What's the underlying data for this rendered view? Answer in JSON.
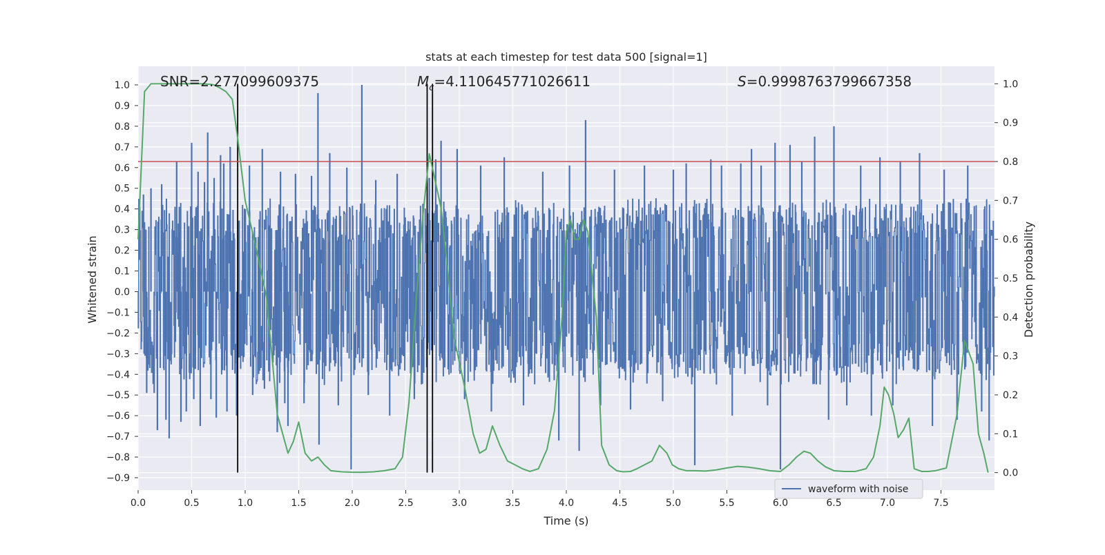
{
  "chart_data": {
    "type": "line",
    "title": "stats at each timestep for test data 500 [signal=1]",
    "xlabel": "Time (s)",
    "ylabel_left": "Whitened strain",
    "ylabel_right": "Detection probability",
    "xlim": [
      0.0,
      8.0
    ],
    "ylim_left": [
      -0.96,
      1.09
    ],
    "ylim_right": [
      -0.045,
      1.045
    ],
    "x_ticks": [
      "0.0",
      "0.5",
      "1.0",
      "1.5",
      "2.0",
      "2.5",
      "3.0",
      "3.5",
      "4.0",
      "4.5",
      "5.0",
      "5.5",
      "6.0",
      "6.5",
      "7.0",
      "7.5"
    ],
    "y_left_ticks": [
      "-0.9",
      "-0.8",
      "-0.7",
      "-0.6",
      "-0.5",
      "-0.4",
      "-0.3",
      "-0.2",
      "-0.1",
      "0.0",
      "0.1",
      "0.2",
      "0.3",
      "0.4",
      "0.5",
      "0.6",
      "0.7",
      "0.8",
      "0.9",
      "1.0"
    ],
    "y_right_ticks": [
      "0.0",
      "0.1",
      "0.2",
      "0.3",
      "0.4",
      "0.5",
      "0.6",
      "0.7",
      "0.8",
      "0.9",
      "1.0"
    ],
    "annotations": {
      "snr": "SNR=2.277099609375",
      "mc_symbol": "M",
      "mc_subscript": "c",
      "mc_value": "=4.110645771026611",
      "s_symbol": "S",
      "s_value": "=0.9998763799667358"
    },
    "threshold_line": {
      "axis": "right",
      "value": 0.8,
      "color": "#c44e52"
    },
    "vertical_markers": {
      "times": [
        0.93,
        2.7,
        2.75
      ],
      "color": "#000000"
    },
    "legend": {
      "position": "lower-right",
      "entries": [
        "waveform with noise"
      ]
    },
    "series": [
      {
        "name": "waveform with noise",
        "axis": "left",
        "color": "#4c72b0",
        "envelope": {
          "noise_core": 0.43,
          "noise_core_neg": -0.4
        },
        "spikes": [
          {
            "t": 0.05,
            "v": 0.47
          },
          {
            "t": 0.08,
            "v": -0.49
          },
          {
            "t": 0.12,
            "v": 0.5
          },
          {
            "t": 0.15,
            "v": -0.49
          },
          {
            "t": 0.18,
            "v": -0.67
          },
          {
            "t": 0.22,
            "v": 0.52
          },
          {
            "t": 0.26,
            "v": -0.62
          },
          {
            "t": 0.29,
            "v": -0.71
          },
          {
            "t": 0.36,
            "v": 0.63
          },
          {
            "t": 0.4,
            "v": -0.63
          },
          {
            "t": 0.45,
            "v": -0.58
          },
          {
            "t": 0.5,
            "v": 0.72
          },
          {
            "t": 0.52,
            "v": -0.52
          },
          {
            "t": 0.56,
            "v": 0.58
          },
          {
            "t": 0.58,
            "v": -0.65
          },
          {
            "t": 0.62,
            "v": 0.53
          },
          {
            "t": 0.65,
            "v": 0.77
          },
          {
            "t": 0.68,
            "v": -0.52
          },
          {
            "t": 0.71,
            "v": 0.55
          },
          {
            "t": 0.73,
            "v": -0.61
          },
          {
            "t": 0.77,
            "v": 0.66
          },
          {
            "t": 0.8,
            "v": 0.62
          },
          {
            "t": 0.83,
            "v": -0.58
          },
          {
            "t": 0.86,
            "v": 0.7
          },
          {
            "t": 0.92,
            "v": -0.6
          },
          {
            "t": 1.04,
            "v": 0.61
          },
          {
            "t": 1.07,
            "v": -0.5
          },
          {
            "t": 1.16,
            "v": 0.69
          },
          {
            "t": 1.18,
            "v": -0.47
          },
          {
            "t": 1.3,
            "v": -0.68
          },
          {
            "t": 1.33,
            "v": 0.58
          },
          {
            "t": 1.37,
            "v": -0.54
          },
          {
            "t": 1.4,
            "v": -0.65
          },
          {
            "t": 1.47,
            "v": 0.57
          },
          {
            "t": 1.55,
            "v": -0.54
          },
          {
            "t": 1.62,
            "v": 0.56
          },
          {
            "t": 1.68,
            "v": 0.96
          },
          {
            "t": 1.69,
            "v": -0.74
          },
          {
            "t": 1.79,
            "v": 0.67
          },
          {
            "t": 1.87,
            "v": -0.55
          },
          {
            "t": 1.95,
            "v": 0.6
          },
          {
            "t": 1.99,
            "v": -0.86
          },
          {
            "t": 2.09,
            "v": 1.0
          },
          {
            "t": 2.15,
            "v": -0.5
          },
          {
            "t": 2.22,
            "v": 0.54
          },
          {
            "t": 2.35,
            "v": -0.6
          },
          {
            "t": 2.42,
            "v": 0.57
          },
          {
            "t": 2.58,
            "v": -0.52
          },
          {
            "t": 2.72,
            "v": 0.55
          },
          {
            "t": 2.78,
            "v": 0.64
          },
          {
            "t": 2.83,
            "v": 0.73
          },
          {
            "t": 2.98,
            "v": 0.69
          },
          {
            "t": 3.05,
            "v": -0.52
          },
          {
            "t": 3.2,
            "v": 0.61
          },
          {
            "t": 3.3,
            "v": -0.58
          },
          {
            "t": 3.42,
            "v": 0.65
          },
          {
            "t": 3.6,
            "v": -0.55
          },
          {
            "t": 3.78,
            "v": 0.58
          },
          {
            "t": 3.93,
            "v": -0.72
          },
          {
            "t": 4.03,
            "v": 0.61
          },
          {
            "t": 4.12,
            "v": -0.77
          },
          {
            "t": 4.18,
            "v": 0.83
          },
          {
            "t": 4.32,
            "v": -0.55
          },
          {
            "t": 4.45,
            "v": 0.59
          },
          {
            "t": 4.6,
            "v": -0.57
          },
          {
            "t": 4.73,
            "v": 0.61
          },
          {
            "t": 4.9,
            "v": -0.53
          },
          {
            "t": 5.0,
            "v": 0.59
          },
          {
            "t": 5.12,
            "v": 0.62
          },
          {
            "t": 5.2,
            "v": -0.84
          },
          {
            "t": 5.35,
            "v": 0.64
          },
          {
            "t": 5.45,
            "v": 0.61
          },
          {
            "t": 5.55,
            "v": -0.6
          },
          {
            "t": 5.63,
            "v": 0.62
          },
          {
            "t": 5.73,
            "v": 0.69
          },
          {
            "t": 5.82,
            "v": 0.61
          },
          {
            "t": 5.88,
            "v": -0.55
          },
          {
            "t": 5.95,
            "v": 0.72
          },
          {
            "t": 6.0,
            "v": -0.86
          },
          {
            "t": 6.09,
            "v": 0.71
          },
          {
            "t": 6.2,
            "v": 0.63
          },
          {
            "t": 6.32,
            "v": 0.75
          },
          {
            "t": 6.45,
            "v": -0.62
          },
          {
            "t": 6.5,
            "v": 0.8
          },
          {
            "t": 6.62,
            "v": -0.55
          },
          {
            "t": 6.75,
            "v": 0.61
          },
          {
            "t": 6.85,
            "v": -0.6
          },
          {
            "t": 6.93,
            "v": 0.65
          },
          {
            "t": 7.05,
            "v": -0.55
          },
          {
            "t": 7.12,
            "v": 0.63
          },
          {
            "t": 7.3,
            "v": 0.67
          },
          {
            "t": 7.42,
            "v": -0.65
          },
          {
            "t": 7.53,
            "v": 0.59
          },
          {
            "t": 7.65,
            "v": -0.62
          },
          {
            "t": 7.75,
            "v": 0.61
          },
          {
            "t": 7.88,
            "v": -0.58
          },
          {
            "t": 7.95,
            "v": -0.72
          }
        ]
      },
      {
        "name": "detection probability",
        "axis": "right",
        "color": "#55a868",
        "x": [
          0.0,
          0.06,
          0.12,
          0.2,
          0.3,
          0.4,
          0.5,
          0.6,
          0.7,
          0.76,
          0.82,
          0.88,
          0.93,
          1.0,
          1.1,
          1.2,
          1.25,
          1.3,
          1.35,
          1.4,
          1.45,
          1.5,
          1.56,
          1.62,
          1.68,
          1.74,
          1.8,
          1.9,
          2.0,
          2.1,
          2.2,
          2.3,
          2.4,
          2.47,
          2.53,
          2.6,
          2.66,
          2.72,
          2.76,
          2.83,
          2.9,
          2.95,
          3.05,
          3.13,
          3.19,
          3.25,
          3.31,
          3.38,
          3.45,
          3.52,
          3.59,
          3.66,
          3.74,
          3.82,
          3.89,
          3.96,
          4.0,
          4.04,
          4.08,
          4.12,
          4.16,
          4.2,
          4.28,
          4.33,
          4.4,
          4.47,
          4.53,
          4.6,
          4.66,
          4.73,
          4.8,
          4.87,
          4.94,
          4.99,
          5.05,
          5.12,
          5.2,
          5.3,
          5.4,
          5.5,
          5.6,
          5.7,
          5.8,
          5.9,
          6.0,
          6.08,
          6.15,
          6.22,
          6.28,
          6.35,
          6.42,
          6.5,
          6.6,
          6.7,
          6.8,
          6.87,
          6.93,
          6.97,
          7.01,
          7.06,
          7.1,
          7.15,
          7.2,
          7.25,
          7.32,
          7.38,
          7.45,
          7.55,
          7.65,
          7.72,
          7.8,
          7.85,
          7.9,
          7.94
        ],
        "y": [
          0.6,
          0.98,
          1.0,
          1.0,
          1.0,
          1.0,
          1.0,
          1.0,
          0.998,
          0.99,
          0.98,
          0.96,
          0.86,
          0.7,
          0.58,
          0.45,
          0.3,
          0.15,
          0.1,
          0.05,
          0.08,
          0.13,
          0.05,
          0.03,
          0.04,
          0.02,
          0.005,
          0.002,
          0.001,
          0.001,
          0.002,
          0.005,
          0.01,
          0.04,
          0.18,
          0.45,
          0.66,
          0.82,
          0.77,
          0.68,
          0.5,
          0.35,
          0.22,
          0.1,
          0.05,
          0.06,
          0.12,
          0.07,
          0.03,
          0.02,
          0.01,
          0.003,
          0.01,
          0.06,
          0.16,
          0.4,
          0.62,
          0.65,
          0.6,
          0.6,
          0.65,
          0.62,
          0.4,
          0.07,
          0.02,
          0.005,
          0.002,
          0.003,
          0.01,
          0.02,
          0.03,
          0.07,
          0.05,
          0.02,
          0.01,
          0.005,
          0.005,
          0.004,
          0.007,
          0.012,
          0.016,
          0.014,
          0.01,
          0.005,
          0.003,
          0.02,
          0.04,
          0.055,
          0.05,
          0.03,
          0.015,
          0.005,
          0.003,
          0.003,
          0.01,
          0.04,
          0.12,
          0.22,
          0.2,
          0.15,
          0.09,
          0.11,
          0.14,
          0.01,
          0.003,
          0.003,
          0.005,
          0.012,
          0.15,
          0.34,
          0.28,
          0.1,
          0.05,
          0.0
        ]
      }
    ]
  }
}
